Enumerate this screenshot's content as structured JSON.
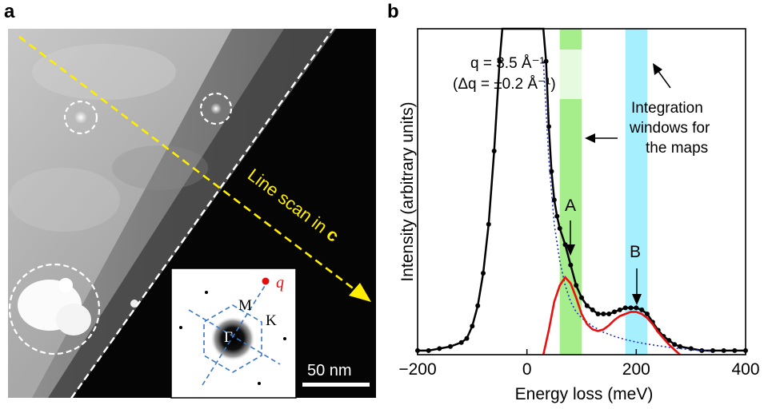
{
  "panel_a": {
    "letter": "a",
    "line_scan_prefix": "Line scan in ",
    "line_scan_bold": "c",
    "scale_bar": "50 nm",
    "inset": {
      "gamma": "Γ",
      "m": "M",
      "k": "K",
      "q": "q"
    }
  },
  "panel_b": {
    "letter": "b",
    "annotation_q_line1": "q = 3.5 Å⁻¹",
    "annotation_q_line2": "(Δq = ±0.2 Å⁻¹)",
    "annotation_windows_line1": "Integration",
    "annotation_windows_line2": "windows for",
    "annotation_windows_line3": "the maps",
    "peak_a": "A",
    "peak_b": "B"
  },
  "colors": {
    "green_window": "#a6ee8c",
    "cyan_window": "#a6efff",
    "black_curve": "#000000",
    "red_curve": "#e81010",
    "blue_dotted": "#2030c0",
    "yellow_scan": "#ffee00"
  },
  "chart_data": {
    "type": "line",
    "xlabel": "Energy loss (meV)",
    "ylabel": "Intensity (arbitrary units)",
    "xlim": [
      -200,
      400
    ],
    "ylim": [
      0,
      1
    ],
    "xticks": [
      -200,
      0,
      200,
      400
    ],
    "grid": false,
    "integration_windows": [
      {
        "name": "A",
        "range": [
          60,
          100
        ]
      },
      {
        "name": "B",
        "range": [
          180,
          220
        ]
      }
    ],
    "series": [
      {
        "x": [
          -200,
          -180,
          -160,
          -140,
          -120,
          -110,
          -100,
          -90,
          -80,
          -70,
          -60,
          -50,
          -45,
          -40,
          -35,
          -30,
          -20,
          -10,
          0,
          10,
          20,
          25,
          30,
          35,
          40,
          45,
          50,
          55,
          60,
          70,
          80,
          90,
          100,
          110,
          120,
          130,
          140,
          150,
          160,
          170,
          180,
          190,
          200,
          210,
          220,
          230,
          240,
          250,
          260,
          270,
          280,
          300,
          320,
          340,
          360,
          380,
          400
        ],
        "values": [
          0.01,
          0.01,
          0.015,
          0.02,
          0.03,
          0.04,
          0.07,
          0.12,
          0.2,
          0.32,
          0.5,
          0.72,
          0.85,
          0.93,
          0.98,
          1.0,
          1.0,
          1.0,
          1.0,
          1.0,
          1.0,
          0.98,
          0.88,
          0.72,
          0.56,
          0.45,
          0.38,
          0.34,
          0.31,
          0.27,
          0.22,
          0.17,
          0.14,
          0.12,
          0.11,
          0.1,
          0.1,
          0.1,
          0.105,
          0.11,
          0.115,
          0.115,
          0.115,
          0.11,
          0.1,
          0.08,
          0.06,
          0.045,
          0.035,
          0.025,
          0.02,
          0.015,
          0.01,
          0.01,
          0.01,
          0.01,
          0.01
        ]
      },
      {
        "x": [
          30,
          40,
          50,
          60,
          70,
          80,
          90,
          100,
          110,
          120,
          130,
          140,
          150,
          160,
          170,
          180,
          190,
          200,
          210,
          220,
          230,
          240,
          250,
          260,
          270,
          280
        ],
        "values": [
          0.0,
          0.06,
          0.13,
          0.17,
          0.19,
          0.175,
          0.14,
          0.1,
          0.075,
          0.062,
          0.058,
          0.062,
          0.072,
          0.085,
          0.095,
          0.1,
          0.105,
          0.105,
          0.1,
          0.09,
          0.075,
          0.055,
          0.04,
          0.025,
          0.012,
          0.0
        ]
      },
      {
        "x": [
          30,
          40,
          50,
          60,
          70,
          80,
          90,
          100,
          120,
          140,
          160,
          180,
          200,
          220,
          240,
          260,
          280,
          300,
          320,
          340
        ],
        "values": [
          0.72,
          0.48,
          0.32,
          0.23,
          0.17,
          0.13,
          0.105,
          0.09,
          0.07,
          0.055,
          0.045,
          0.037,
          0.031,
          0.026,
          0.022,
          0.018,
          0.015,
          0.012,
          0.01,
          0.008
        ]
      }
    ]
  }
}
